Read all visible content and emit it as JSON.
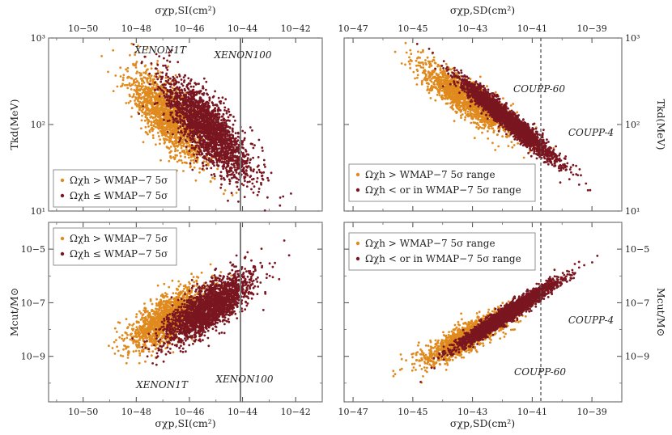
{
  "chart_data": [
    {
      "type": "scatter",
      "panel": "top-left",
      "top_axis_label": "σχp,SI(cm²)",
      "left_axis_label": "Tkd(MeV)",
      "x_scale": "log",
      "y_scale": "log",
      "xlim": [
        5e-52,
        1e-41
      ],
      "ylim": [
        10,
        1000
      ],
      "x_ticks": [
        1e-50,
        1e-48,
        1e-46,
        1e-44,
        1e-42
      ],
      "x_tick_labels": [
        "10−50",
        "10−48",
        "10−46",
        "10−44",
        "10−42"
      ],
      "y_ticks": [
        10,
        100,
        1000
      ],
      "y_tick_labels": [
        "10¹",
        "10²",
        "10³"
      ],
      "annotations": [
        "XENON1T",
        "XENON100"
      ],
      "limit_line": {
        "x": 1e-44,
        "style": "solid"
      },
      "legend_position": "bottom-left",
      "series": [
        {
          "name": "Ωχh > WMAP−7 5σ",
          "color": "#e08a1e",
          "n_points": 1500,
          "x_center_log10": -46.8,
          "x_spread": 1.3,
          "y_at_center_log10": 2.1,
          "y_slope": -0.25,
          "y_spread": 0.3
        },
        {
          "name": "Ωχh ≤ WMAP−7 5σ",
          "color": "#7a1620",
          "n_points": 2200,
          "x_center_log10": -45.3,
          "x_spread": 1.5,
          "y_at_center_log10": 1.95,
          "y_slope": -0.28,
          "y_spread": 0.3
        }
      ]
    },
    {
      "type": "scatter",
      "panel": "top-right",
      "top_axis_label": "σχp,SD(cm²)",
      "right_axis_label": "Tkd(MeV)",
      "x_scale": "log",
      "y_scale": "log",
      "xlim": [
        5e-48,
        1e-38
      ],
      "ylim": [
        10,
        1000
      ],
      "x_ticks": [
        1e-47,
        1e-45,
        1e-43,
        1e-41,
        1e-39
      ],
      "x_tick_labels": [
        "10−47",
        "10−45",
        "10−43",
        "10−41",
        "10−39"
      ],
      "y_ticks": [
        10,
        100,
        1000
      ],
      "y_tick_labels": [
        "10¹",
        "10²",
        "10³"
      ],
      "annotations": [
        "COUPP-60",
        "COUPP-4"
      ],
      "limit_line": {
        "x": 1e-41,
        "style": "dashed"
      },
      "legend_position": "bottom-left",
      "series": [
        {
          "name": "Ωχh > WMAP−7 5σ range",
          "color": "#e08a1e",
          "n_points": 1500,
          "x_center_log10": -43.2,
          "x_spread": 1.4,
          "y_at_center_log10": 2.3,
          "y_slope": -0.22,
          "y_spread": 0.18
        },
        {
          "name": "Ωχh < or in WMAP−7 5σ range",
          "color": "#7a1620",
          "n_points": 2800,
          "x_center_log10": -41.8,
          "x_spread": 1.4,
          "y_at_center_log10": 2.05,
          "y_slope": -0.28,
          "y_spread": 0.1
        }
      ]
    },
    {
      "type": "scatter",
      "panel": "bottom-left",
      "bottom_axis_label": "σχp,SI(cm²)",
      "left_axis_label": "Mcut/M⊙",
      "x_scale": "log",
      "y_scale": "log",
      "xlim": [
        5e-52,
        1e-41
      ],
      "ylim": [
        2e-11,
        0.0001
      ],
      "x_ticks": [
        1e-50,
        1e-48,
        1e-46,
        1e-44,
        1e-42
      ],
      "x_tick_labels": [
        "10−50",
        "10−48",
        "10−46",
        "10−44",
        "10−42"
      ],
      "y_ticks": [
        1e-09,
        1e-07,
        1e-05
      ],
      "y_tick_labels": [
        "10−9",
        "10−7",
        "10−5"
      ],
      "annotations": [
        "XENON1T",
        "XENON100"
      ],
      "limit_line": {
        "x": 1e-44,
        "style": "solid"
      },
      "legend_position": "top-left",
      "series": [
        {
          "name": "Ωχh > WMAP−7 5σ",
          "color": "#e08a1e",
          "n_points": 1500,
          "x_center_log10": -46.8,
          "x_spread": 1.3,
          "y_at_center_log10": -7.6,
          "y_slope": 0.55,
          "y_spread": 0.7
        },
        {
          "name": "Ωχh ≤ WMAP−7 5σ",
          "color": "#7a1620",
          "n_points": 2200,
          "x_center_log10": -45.3,
          "x_spread": 1.5,
          "y_at_center_log10": -7.2,
          "y_slope": 0.6,
          "y_spread": 0.7
        }
      ]
    },
    {
      "type": "scatter",
      "panel": "bottom-right",
      "bottom_axis_label": "σχp,SD(cm²)",
      "right_axis_label": "Mcut/M⊙",
      "x_scale": "log",
      "y_scale": "log",
      "xlim": [
        5e-48,
        1e-38
      ],
      "ylim": [
        2e-11,
        0.0001
      ],
      "x_ticks": [
        1e-47,
        1e-45,
        1e-43,
        1e-41,
        1e-39
      ],
      "x_tick_labels": [
        "10−47",
        "10−45",
        "10−43",
        "10−41",
        "10−39"
      ],
      "y_ticks": [
        1e-09,
        1e-07,
        1e-05
      ],
      "y_tick_labels": [
        "10−9",
        "10−7",
        "10−5"
      ],
      "annotations": [
        "COUPP-4",
        "COUPP-60"
      ],
      "limit_line": {
        "x": 1e-41,
        "style": "dashed"
      },
      "legend_position": "top-left",
      "series": [
        {
          "name": "Ωχh > WMAP−7 5σ range",
          "color": "#e08a1e",
          "n_points": 1500,
          "x_center_log10": -43.2,
          "x_spread": 1.4,
          "y_at_center_log10": -8.3,
          "y_slope": 0.55,
          "y_spread": 0.45
        },
        {
          "name": "Ωχh < or in WMAP−7 5σ range",
          "color": "#7a1620",
          "n_points": 2800,
          "x_center_log10": -41.8,
          "x_spread": 1.4,
          "y_at_center_log10": -7.4,
          "y_slope": 0.72,
          "y_spread": 0.25
        }
      ]
    }
  ]
}
